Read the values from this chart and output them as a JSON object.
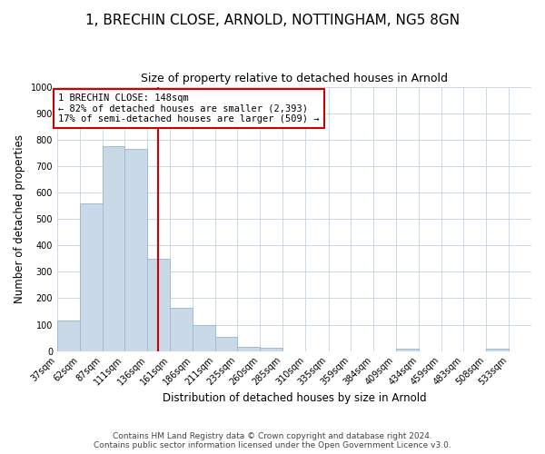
{
  "title": "1, BRECHIN CLOSE, ARNOLD, NOTTINGHAM, NG5 8GN",
  "subtitle": "Size of property relative to detached houses in Arnold",
  "xlabel": "Distribution of detached houses by size in Arnold",
  "ylabel": "Number of detached properties",
  "bin_labels": [
    "37sqm",
    "62sqm",
    "87sqm",
    "111sqm",
    "136sqm",
    "161sqm",
    "186sqm",
    "211sqm",
    "235sqm",
    "260sqm",
    "285sqm",
    "310sqm",
    "335sqm",
    "359sqm",
    "384sqm",
    "409sqm",
    "434sqm",
    "459sqm",
    "483sqm",
    "508sqm",
    "533sqm"
  ],
  "bin_edges": [
    37,
    62,
    87,
    111,
    136,
    161,
    186,
    211,
    235,
    260,
    285,
    310,
    335,
    359,
    384,
    409,
    434,
    459,
    483,
    508,
    533,
    558
  ],
  "bar_heights": [
    115,
    560,
    775,
    765,
    350,
    165,
    98,
    55,
    15,
    12,
    0,
    0,
    0,
    0,
    0,
    10,
    0,
    0,
    0,
    10,
    0
  ],
  "bar_color": "#c9d9e8",
  "bar_edge_color": "#a0bcd0",
  "vline_x": 148,
  "vline_color": "#cc0000",
  "annotation_line1": "1 BRECHIN CLOSE: 148sqm",
  "annotation_line2": "← 82% of detached houses are smaller (2,393)",
  "annotation_line3": "17% of semi-detached houses are larger (509) →",
  "annotation_box_color": "#cc0000",
  "ylim": [
    0,
    1000
  ],
  "yticks": [
    0,
    100,
    200,
    300,
    400,
    500,
    600,
    700,
    800,
    900,
    1000
  ],
  "footer_line1": "Contains HM Land Registry data © Crown copyright and database right 2024.",
  "footer_line2": "Contains public sector information licensed under the Open Government Licence v3.0.",
  "background_color": "#ffffff",
  "grid_color": "#c8d8e8",
  "title_fontsize": 11,
  "subtitle_fontsize": 9,
  "axis_label_fontsize": 8.5,
  "tick_fontsize": 7,
  "annotation_fontsize": 7.5,
  "footer_fontsize": 6.5
}
